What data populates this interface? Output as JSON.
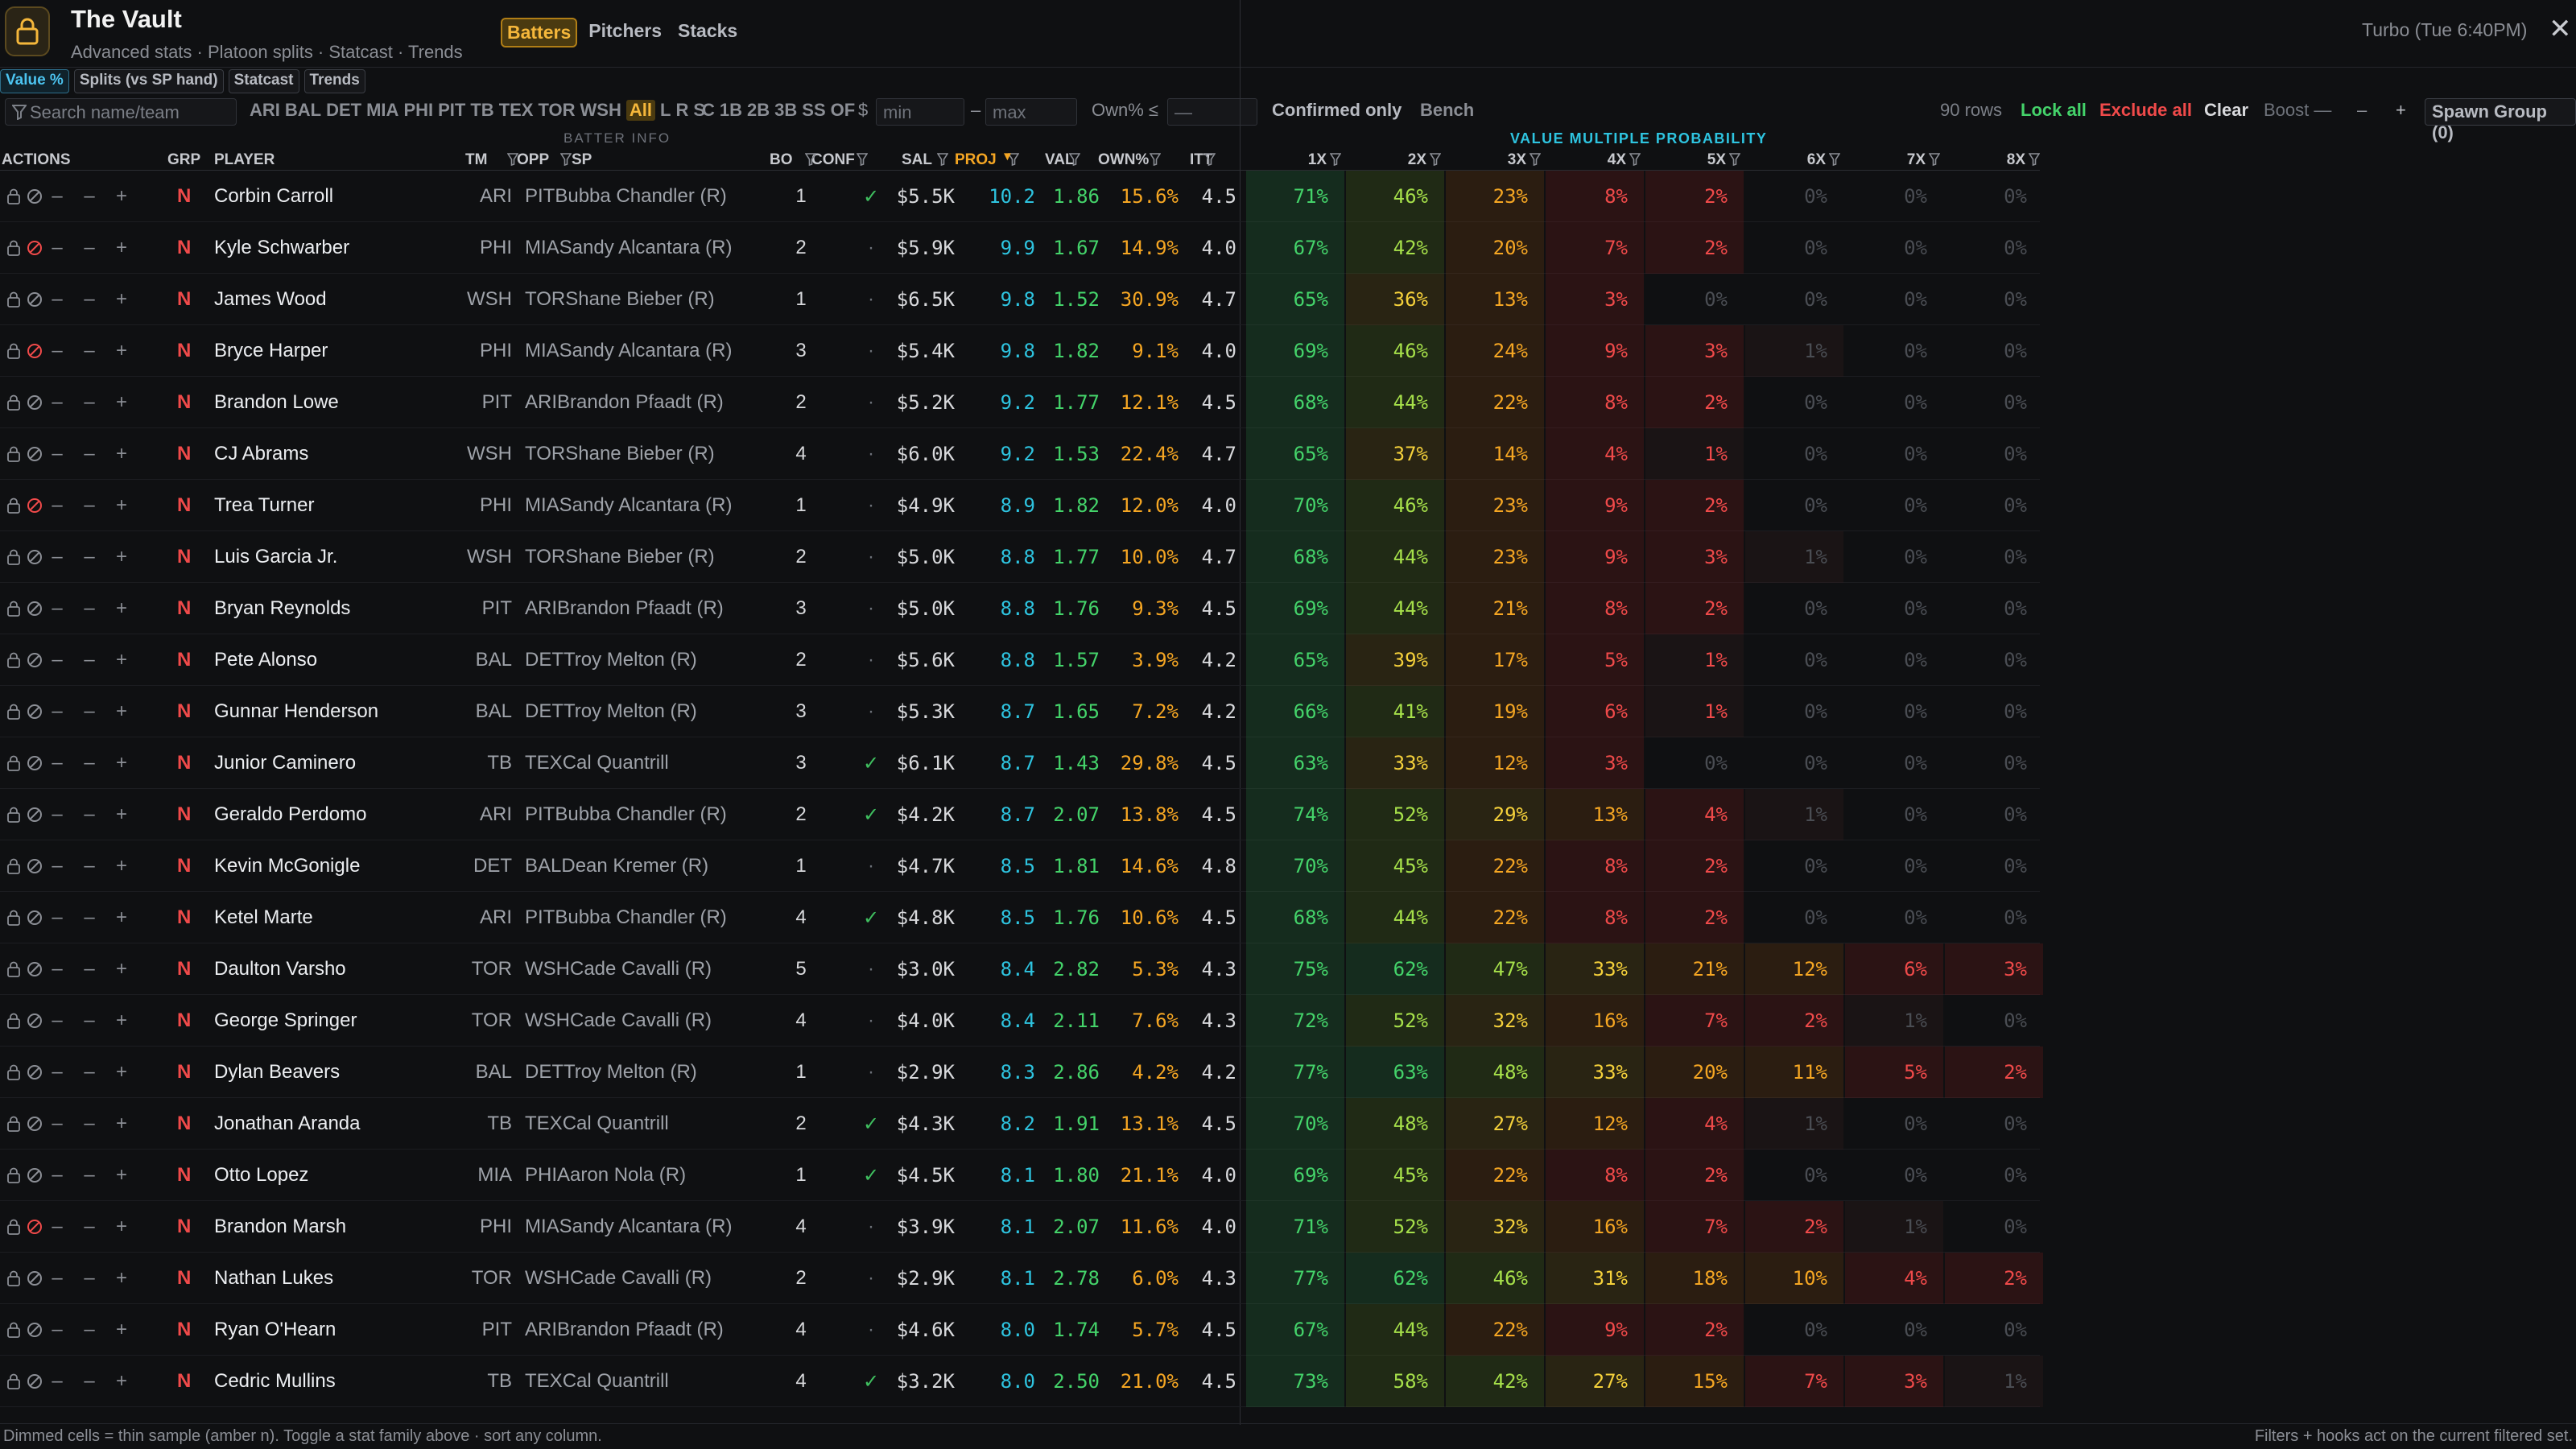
{
  "app": {
    "title": "The Vault",
    "subtitle": "Advanced stats · Platoon splits · Statcast · Trends",
    "status": "Turbo (Tue 6:40PM)",
    "close": "✕"
  },
  "view_tabs": [
    {
      "label": "Batters",
      "active": true
    },
    {
      "label": "Pitchers",
      "active": false
    },
    {
      "label": "Stacks",
      "active": false
    }
  ],
  "family_tabs": [
    {
      "label": "Value %",
      "active": true
    },
    {
      "label": "Splits (vs SP hand)",
      "active": false
    },
    {
      "label": "Statcast",
      "active": false
    },
    {
      "label": "Trends",
      "active": false
    }
  ],
  "filters": {
    "search_placeholder": "Search name/team",
    "teams": [
      "ARI",
      "BAL",
      "DET",
      "MIA",
      "PHI",
      "PIT",
      "TB",
      "TEX",
      "TOR",
      "WSH"
    ],
    "hand_all": "All",
    "hands": [
      "L",
      "R",
      "S"
    ],
    "positions": [
      "C",
      "1B",
      "2B",
      "3B",
      "SS",
      "OF"
    ],
    "salary_label": "$",
    "min_placeholder": "min",
    "dash": "–",
    "max_placeholder": "max",
    "own_label": "Own% ≤",
    "own_placeholder": "—",
    "confirmed_only": "Confirmed only",
    "bench": "Bench",
    "row_count": "90 rows",
    "lock_all": "Lock all",
    "exclude_all": "Exclude all",
    "clear": "Clear",
    "boost": "Boost —",
    "boost_minus": "–",
    "boost_plus": "+",
    "spawn_group": "Spawn Group (0)"
  },
  "group_headers": {
    "batter_info": "BATTER INFO",
    "value_multiple": "VALUE MULTIPLE PROBABILITY"
  },
  "columns": {
    "actions": "ACTIONS",
    "grp": "GRP",
    "player": "PLAYER",
    "tm": "TM",
    "opp": "OPP",
    "sp": "SP",
    "bo": "BO",
    "conf": "CONF",
    "sal": "SAL",
    "proj": "PROJ",
    "val": "VAL",
    "own": "OWN%",
    "itt": "ITT",
    "multiples": [
      "1X",
      "2X",
      "3X",
      "4X",
      "5X",
      "6X",
      "7X",
      "8X"
    ]
  },
  "colors": {
    "accent": "#f5b73b",
    "proj": "#2ec4e0",
    "val": "#44d36a",
    "own": "#f5a623",
    "danger": "#f04a4a"
  },
  "rows": [
    {
      "player": "Corbin Carroll",
      "tm": "ARI",
      "opp": "PIT",
      "sp": "Bubba Chandler (R)",
      "bo": "1",
      "conf": "✓",
      "sal": "$5.5K",
      "proj": "10.2",
      "val": "1.86",
      "own": "15.6%",
      "itt": "4.5",
      "excluded": false,
      "probs": [
        71,
        46,
        23,
        8,
        2,
        0,
        0,
        0
      ]
    },
    {
      "player": "Kyle Schwarber",
      "tm": "PHI",
      "opp": "MIA",
      "sp": "Sandy Alcantara (R)",
      "bo": "2",
      "conf": "·",
      "sal": "$5.9K",
      "proj": "9.9",
      "val": "1.67",
      "own": "14.9%",
      "itt": "4.0",
      "excluded": true,
      "probs": [
        67,
        42,
        20,
        7,
        2,
        0,
        0,
        0
      ]
    },
    {
      "player": "James Wood",
      "tm": "WSH",
      "opp": "TOR",
      "sp": "Shane Bieber (R)",
      "bo": "1",
      "conf": "·",
      "sal": "$6.5K",
      "proj": "9.8",
      "val": "1.52",
      "own": "30.9%",
      "itt": "4.7",
      "excluded": false,
      "probs": [
        65,
        36,
        13,
        3,
        0,
        0,
        0,
        0
      ]
    },
    {
      "player": "Bryce Harper",
      "tm": "PHI",
      "opp": "MIA",
      "sp": "Sandy Alcantara (R)",
      "bo": "3",
      "conf": "·",
      "sal": "$5.4K",
      "proj": "9.8",
      "val": "1.82",
      "own": "9.1%",
      "itt": "4.0",
      "excluded": true,
      "probs": [
        69,
        46,
        24,
        9,
        3,
        1,
        0,
        0
      ]
    },
    {
      "player": "Brandon Lowe",
      "tm": "PIT",
      "opp": "ARI",
      "sp": "Brandon Pfaadt (R)",
      "bo": "2",
      "conf": "·",
      "sal": "$5.2K",
      "proj": "9.2",
      "val": "1.77",
      "own": "12.1%",
      "itt": "4.5",
      "excluded": false,
      "probs": [
        68,
        44,
        22,
        8,
        2,
        0,
        0,
        0
      ]
    },
    {
      "player": "CJ Abrams",
      "tm": "WSH",
      "opp": "TOR",
      "sp": "Shane Bieber (R)",
      "bo": "4",
      "conf": "·",
      "sal": "$6.0K",
      "proj": "9.2",
      "val": "1.53",
      "own": "22.4%",
      "itt": "4.7",
      "excluded": false,
      "probs": [
        65,
        37,
        14,
        4,
        1,
        0,
        0,
        0
      ]
    },
    {
      "player": "Trea Turner",
      "tm": "PHI",
      "opp": "MIA",
      "sp": "Sandy Alcantara (R)",
      "bo": "1",
      "conf": "·",
      "sal": "$4.9K",
      "proj": "8.9",
      "val": "1.82",
      "own": "12.0%",
      "itt": "4.0",
      "excluded": true,
      "probs": [
        70,
        46,
        23,
        9,
        2,
        0,
        0,
        0
      ]
    },
    {
      "player": "Luis Garcia Jr.",
      "tm": "WSH",
      "opp": "TOR",
      "sp": "Shane Bieber (R)",
      "bo": "2",
      "conf": "·",
      "sal": "$5.0K",
      "proj": "8.8",
      "val": "1.77",
      "own": "10.0%",
      "itt": "4.7",
      "excluded": false,
      "probs": [
        68,
        44,
        23,
        9,
        3,
        1,
        0,
        0
      ]
    },
    {
      "player": "Bryan Reynolds",
      "tm": "PIT",
      "opp": "ARI",
      "sp": "Brandon Pfaadt (R)",
      "bo": "3",
      "conf": "·",
      "sal": "$5.0K",
      "proj": "8.8",
      "val": "1.76",
      "own": "9.3%",
      "itt": "4.5",
      "excluded": false,
      "probs": [
        69,
        44,
        21,
        8,
        2,
        0,
        0,
        0
      ]
    },
    {
      "player": "Pete Alonso",
      "tm": "BAL",
      "opp": "DET",
      "sp": "Troy Melton (R)",
      "bo": "2",
      "conf": "·",
      "sal": "$5.6K",
      "proj": "8.8",
      "val": "1.57",
      "own": "3.9%",
      "itt": "4.2",
      "excluded": false,
      "probs": [
        65,
        39,
        17,
        5,
        1,
        0,
        0,
        0
      ]
    },
    {
      "player": "Gunnar Henderson",
      "tm": "BAL",
      "opp": "DET",
      "sp": "Troy Melton (R)",
      "bo": "3",
      "conf": "·",
      "sal": "$5.3K",
      "proj": "8.7",
      "val": "1.65",
      "own": "7.2%",
      "itt": "4.2",
      "excluded": false,
      "probs": [
        66,
        41,
        19,
        6,
        1,
        0,
        0,
        0
      ]
    },
    {
      "player": "Junior Caminero",
      "tm": "TB",
      "opp": "TEX",
      "sp": "Cal Quantrill",
      "bo": "3",
      "conf": "✓",
      "sal": "$6.1K",
      "proj": "8.7",
      "val": "1.43",
      "own": "29.8%",
      "itt": "4.5",
      "excluded": false,
      "probs": [
        63,
        33,
        12,
        3,
        0,
        0,
        0,
        0
      ]
    },
    {
      "player": "Geraldo Perdomo",
      "tm": "ARI",
      "opp": "PIT",
      "sp": "Bubba Chandler (R)",
      "bo": "2",
      "conf": "✓",
      "sal": "$4.2K",
      "proj": "8.7",
      "val": "2.07",
      "own": "13.8%",
      "itt": "4.5",
      "excluded": false,
      "probs": [
        74,
        52,
        29,
        13,
        4,
        1,
        0,
        0
      ]
    },
    {
      "player": "Kevin McGonigle",
      "tm": "DET",
      "opp": "BAL",
      "sp": "Dean Kremer (R)",
      "bo": "1",
      "conf": "·",
      "sal": "$4.7K",
      "proj": "8.5",
      "val": "1.81",
      "own": "14.6%",
      "itt": "4.8",
      "excluded": false,
      "probs": [
        70,
        45,
        22,
        8,
        2,
        0,
        0,
        0
      ]
    },
    {
      "player": "Ketel Marte",
      "tm": "ARI",
      "opp": "PIT",
      "sp": "Bubba Chandler (R)",
      "bo": "4",
      "conf": "✓",
      "sal": "$4.8K",
      "proj": "8.5",
      "val": "1.76",
      "own": "10.6%",
      "itt": "4.5",
      "excluded": false,
      "probs": [
        68,
        44,
        22,
        8,
        2,
        0,
        0,
        0
      ]
    },
    {
      "player": "Daulton Varsho",
      "tm": "TOR",
      "opp": "WSH",
      "sp": "Cade Cavalli (R)",
      "bo": "5",
      "conf": "·",
      "sal": "$3.0K",
      "proj": "8.4",
      "val": "2.82",
      "own": "5.3%",
      "itt": "4.3",
      "excluded": false,
      "probs": [
        75,
        62,
        47,
        33,
        21,
        12,
        6,
        3
      ]
    },
    {
      "player": "George Springer",
      "tm": "TOR",
      "opp": "WSH",
      "sp": "Cade Cavalli (R)",
      "bo": "4",
      "conf": "·",
      "sal": "$4.0K",
      "proj": "8.4",
      "val": "2.11",
      "own": "7.6%",
      "itt": "4.3",
      "excluded": false,
      "probs": [
        72,
        52,
        32,
        16,
        7,
        2,
        1,
        0
      ]
    },
    {
      "player": "Dylan Beavers",
      "tm": "BAL",
      "opp": "DET",
      "sp": "Troy Melton (R)",
      "bo": "1",
      "conf": "·",
      "sal": "$2.9K",
      "proj": "8.3",
      "val": "2.86",
      "own": "4.2%",
      "itt": "4.2",
      "excluded": false,
      "probs": [
        77,
        63,
        48,
        33,
        20,
        11,
        5,
        2
      ]
    },
    {
      "player": "Jonathan Aranda",
      "tm": "TB",
      "opp": "TEX",
      "sp": "Cal Quantrill",
      "bo": "2",
      "conf": "✓",
      "sal": "$4.3K",
      "proj": "8.2",
      "val": "1.91",
      "own": "13.1%",
      "itt": "4.5",
      "excluded": false,
      "probs": [
        70,
        48,
        27,
        12,
        4,
        1,
        0,
        0
      ]
    },
    {
      "player": "Otto Lopez",
      "tm": "MIA",
      "opp": "PHI",
      "sp": "Aaron Nola (R)",
      "bo": "1",
      "conf": "✓",
      "sal": "$4.5K",
      "proj": "8.1",
      "val": "1.80",
      "own": "21.1%",
      "itt": "4.0",
      "excluded": false,
      "probs": [
        69,
        45,
        22,
        8,
        2,
        0,
        0,
        0
      ]
    },
    {
      "player": "Brandon Marsh",
      "tm": "PHI",
      "opp": "MIA",
      "sp": "Sandy Alcantara (R)",
      "bo": "4",
      "conf": "·",
      "sal": "$3.9K",
      "proj": "8.1",
      "val": "2.07",
      "own": "11.6%",
      "itt": "4.0",
      "excluded": true,
      "probs": [
        71,
        52,
        32,
        16,
        7,
        2,
        1,
        0
      ]
    },
    {
      "player": "Nathan Lukes",
      "tm": "TOR",
      "opp": "WSH",
      "sp": "Cade Cavalli (R)",
      "bo": "2",
      "conf": "·",
      "sal": "$2.9K",
      "proj": "8.1",
      "val": "2.78",
      "own": "6.0%",
      "itt": "4.3",
      "excluded": false,
      "probs": [
        77,
        62,
        46,
        31,
        18,
        10,
        4,
        2
      ]
    },
    {
      "player": "Ryan O'Hearn",
      "tm": "PIT",
      "opp": "ARI",
      "sp": "Brandon Pfaadt (R)",
      "bo": "4",
      "conf": "·",
      "sal": "$4.6K",
      "proj": "8.0",
      "val": "1.74",
      "own": "5.7%",
      "itt": "4.5",
      "excluded": false,
      "probs": [
        67,
        44,
        22,
        9,
        2,
        0,
        0,
        0
      ]
    },
    {
      "player": "Cedric Mullins",
      "tm": "TB",
      "opp": "TEX",
      "sp": "Cal Quantrill",
      "bo": "4",
      "conf": "✓",
      "sal": "$3.2K",
      "proj": "8.0",
      "val": "2.50",
      "own": "21.0%",
      "itt": "4.5",
      "excluded": false,
      "probs": [
        73,
        58,
        42,
        27,
        15,
        7,
        3,
        1
      ]
    }
  ],
  "footer": {
    "left": "Dimmed cells = thin sample (amber n). Toggle a stat family above · sort any column.",
    "right": "Filters + hooks act on the current filtered set."
  }
}
